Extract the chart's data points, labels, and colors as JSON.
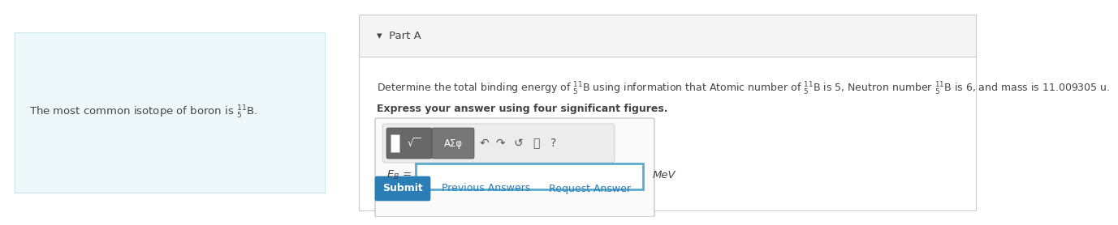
{
  "bg_color": "#ffffff",
  "left_panel_bg": "#eef7f9",
  "left_panel_border": "#c8e8f0",
  "left_panel_text": "The most common isotope of boron is $\\mathregular{^{11}_{5}}$B.",
  "part_a_label": "▾  Part A",
  "question_line1": "Determine the total binding energy of $\\mathregular{^{11}_{5}}$B using information that Atomic number of $\\mathregular{^{11}_{5}}$B is 5, Neutron number $\\mathregular{^{11}_{5}}$B is 6, and mass is 11.009305 u.",
  "question_line2": "Express your answer using four significant figures.",
  "eb_label": "$E_B$ =",
  "mev_label": "MeV",
  "submit_text": "Submit",
  "submit_bg": "#2a7db5",
  "prev_text": "Previous Answers",
  "req_text": "Request Answer",
  "link_color": "#2a7db5",
  "header_bg": "#f4f4f4",
  "panel_border": "#cccccc",
  "toolbar_bg": "#f0f0f0",
  "toolbar_border": "#bbbbbb",
  "icon_bg": "#707070",
  "icon_bg2": "#888888",
  "input_border": "#5aabcc",
  "text_color": "#444444",
  "font_size": 9.5
}
